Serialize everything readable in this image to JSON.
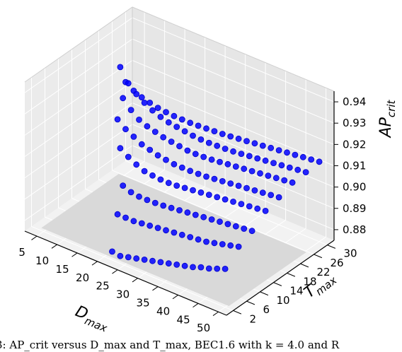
{
  "caption": "3: AP_crit versus D_max and T_max, BEC1.6 with k = 4.0 and R",
  "chart_data": {
    "type": "scatter3d",
    "title": "",
    "xlabel": {
      "main": "D",
      "sub": "max"
    },
    "ylabel": {
      "main": "T",
      "sub": "max"
    },
    "zlabel": {
      "main": "AP",
      "sub": "crit"
    },
    "x_ticks": [
      "5",
      "10",
      "15",
      "20",
      "25",
      "30",
      "35",
      "40",
      "45",
      "50"
    ],
    "y_ticks": [
      "2",
      "6",
      "10",
      "14",
      "18",
      "22",
      "26",
      "30"
    ],
    "z_ticks": [
      "0.88",
      "0.89",
      "0.90",
      "0.91",
      "0.92",
      "0.93",
      "0.94"
    ],
    "xlim": [
      2,
      52
    ],
    "ylim": [
      0,
      32
    ],
    "zlim": [
      0.875,
      0.945
    ],
    "floor_plane_color": "#d9d9d9",
    "marker_color": "#0000ff",
    "grid": true,
    "series": [
      {
        "T": 2,
        "D": [
          22,
          24,
          26,
          28,
          30,
          32,
          34,
          36,
          38,
          40,
          42,
          44,
          46,
          48,
          50
        ],
        "AP": [
          0.879,
          0.8785,
          0.8795,
          0.8805,
          0.8815,
          0.8825,
          0.8835,
          0.8845,
          0.8855,
          0.8865,
          0.8875,
          0.889,
          0.89,
          0.8915,
          0.893
        ]
      },
      {
        "T": 6,
        "D": [
          20,
          22,
          24,
          26,
          28,
          30,
          32,
          34,
          36,
          38,
          40,
          42,
          44,
          46,
          48,
          50
        ],
        "AP": [
          0.8905,
          0.8905,
          0.8905,
          0.891,
          0.8915,
          0.892,
          0.8925,
          0.893,
          0.8935,
          0.894,
          0.8945,
          0.895,
          0.896,
          0.897,
          0.898,
          0.899
        ]
      },
      {
        "T": 10,
        "D": [
          18,
          20,
          22,
          24,
          26,
          28,
          30,
          32,
          34,
          36,
          38,
          40,
          42,
          44,
          46,
          48,
          50
        ],
        "AP": [
          0.898,
          0.8965,
          0.896,
          0.896,
          0.8962,
          0.8965,
          0.897,
          0.8975,
          0.898,
          0.8985,
          0.899,
          0.8995,
          0.9,
          0.9005,
          0.901,
          0.9015,
          0.902
        ]
      },
      {
        "T": 14,
        "D": [
          14,
          16,
          18,
          20,
          22,
          24,
          26,
          28,
          30,
          32,
          34,
          36,
          38,
          40,
          42,
          44,
          46,
          48,
          50
        ],
        "AP": [
          0.908,
          0.9055,
          0.9035,
          0.902,
          0.9015,
          0.9012,
          0.9012,
          0.9015,
          0.902,
          0.9025,
          0.903,
          0.9035,
          0.904,
          0.9045,
          0.905,
          0.9055,
          0.906,
          0.9065,
          0.907
        ]
      },
      {
        "T": 18,
        "D": [
          10,
          12,
          14,
          16,
          18,
          20,
          22,
          24,
          26,
          28,
          30,
          32,
          34,
          36,
          38,
          40,
          42,
          44,
          46,
          48,
          50
        ],
        "AP": [
          0.914,
          0.911,
          0.909,
          0.907,
          0.906,
          0.905,
          0.9045,
          0.904,
          0.904,
          0.904,
          0.9042,
          0.9045,
          0.905,
          0.9055,
          0.906,
          0.9065,
          0.907,
          0.9075,
          0.908,
          0.9085,
          0.909
        ]
      },
      {
        "T": 22,
        "D": [
          8,
          10,
          12,
          14,
          16,
          18,
          20,
          22,
          24,
          26,
          28,
          30,
          32,
          34,
          36,
          38,
          40,
          42,
          44,
          46,
          48,
          50
        ],
        "AP": [
          0.918,
          0.914,
          0.911,
          0.9095,
          0.9085,
          0.9075,
          0.907,
          0.9065,
          0.906,
          0.906,
          0.9062,
          0.9065,
          0.907,
          0.9075,
          0.908,
          0.9085,
          0.909,
          0.9095,
          0.91,
          0.9105,
          0.911,
          0.9115
        ]
      },
      {
        "T": 26,
        "D": [
          4,
          6,
          8,
          10,
          12,
          14,
          16,
          18,
          20,
          22,
          24,
          26,
          28,
          30,
          32,
          34,
          36,
          38,
          40,
          42,
          44,
          46,
          48,
          50
        ],
        "AP": [
          0.925,
          0.919,
          0.9155,
          0.913,
          0.911,
          0.9095,
          0.9085,
          0.908,
          0.9075,
          0.907,
          0.9068,
          0.9068,
          0.907,
          0.9072,
          0.9075,
          0.908,
          0.9085,
          0.909,
          0.9095,
          0.91,
          0.9105,
          0.911,
          0.9115,
          0.912
        ]
      },
      {
        "T": 30,
        "D": [
          2,
          4,
          6,
          8,
          10,
          12,
          14,
          16,
          18,
          20,
          22,
          24,
          26,
          28,
          30,
          32,
          34,
          36,
          38,
          40,
          42,
          44,
          46,
          48,
          50
        ],
        "AP": [
          0.912,
          0.9095,
          0.908,
          0.907,
          0.9062,
          0.9058,
          0.9055,
          0.9055,
          0.9055,
          0.9057,
          0.906,
          0.9063,
          0.9066,
          0.907,
          0.9075,
          0.908,
          0.9085,
          0.909,
          0.9095,
          0.91,
          0.9105,
          0.911,
          0.9115,
          0.912,
          0.9125
        ]
      }
    ]
  }
}
